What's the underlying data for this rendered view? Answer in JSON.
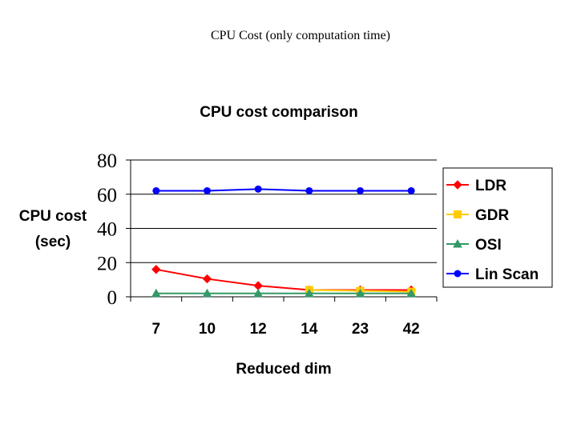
{
  "slide": {
    "title": "CPU Cost (only computation time)"
  },
  "chart_data": {
    "type": "line",
    "title": "CPU cost comparison",
    "xlabel": "Reduced dim",
    "ylabel_line1": "CPU cost",
    "ylabel_line2": "(sec)",
    "categories": [
      "7",
      "10",
      "12",
      "14",
      "23",
      "42"
    ],
    "ylim": [
      0,
      80
    ],
    "yticks": [
      0,
      20,
      40,
      60,
      80
    ],
    "grid": true,
    "legend_position": "right",
    "series": [
      {
        "name": "LDR",
        "color": "#ff0000",
        "marker": "diamond",
        "values": [
          16,
          10.5,
          6.5,
          4,
          4,
          4
        ]
      },
      {
        "name": "GDR",
        "color": "#ffcc00",
        "marker": "square",
        "values": [
          null,
          null,
          null,
          4,
          3.5,
          3
        ]
      },
      {
        "name": "OSI",
        "color": "#339966",
        "marker": "triangle",
        "values": [
          2,
          2,
          2,
          2,
          2,
          2
        ]
      },
      {
        "name": "Lin Scan",
        "color": "#0000ff",
        "marker": "circle",
        "values": [
          62,
          62,
          63,
          62,
          62,
          62
        ]
      }
    ]
  }
}
